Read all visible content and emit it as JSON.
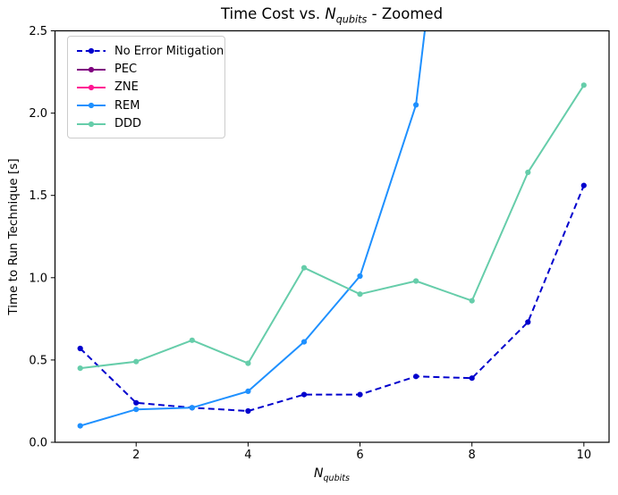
{
  "figure": {
    "title": {
      "prefix": "Time Cost vs. ",
      "math_base": "N",
      "math_sub": "qubits",
      "suffix": " - Zoomed"
    },
    "xlabel": {
      "math_base": "N",
      "math_sub": "qubits"
    },
    "ylabel": "Time to Run Technique [s]"
  },
  "chart_data": {
    "type": "line",
    "title": "Time Cost vs. N_qubits - Zoomed",
    "xlabel": "N_qubits",
    "ylabel": "Time to Run Technique [s]",
    "xlim": [
      0.55,
      10.45
    ],
    "ylim": [
      0,
      2.5
    ],
    "xticks": [
      2,
      4,
      6,
      8,
      10
    ],
    "yticks": [
      0.0,
      0.5,
      1.0,
      1.5,
      2.0,
      2.5
    ],
    "grid": false,
    "legend_position": "upper left",
    "x": [
      1,
      2,
      3,
      4,
      5,
      6,
      7,
      8,
      9,
      10
    ],
    "series": [
      {
        "name": "No Error Mitigation",
        "color": "#0000cd",
        "linestyle": "dashed",
        "marker": "circle",
        "values": [
          0.57,
          0.24,
          0.21,
          0.19,
          0.29,
          0.29,
          0.4,
          0.39,
          0.73,
          1.56
        ]
      },
      {
        "name": "PEC",
        "color": "#800080",
        "linestyle": "solid",
        "marker": "circle",
        "values": [
          null,
          null,
          null,
          null,
          null,
          null,
          null,
          null,
          null,
          null
        ],
        "note": "in legend only; no points visible within y-range"
      },
      {
        "name": "ZNE",
        "color": "#ff1493",
        "linestyle": "solid",
        "marker": "circle",
        "values": [
          null,
          null,
          null,
          null,
          null,
          null,
          null,
          null,
          null,
          null
        ],
        "note": "in legend only; no points visible within y-range"
      },
      {
        "name": "REM",
        "color": "#1e90ff",
        "linestyle": "solid",
        "marker": "circle",
        "values": [
          0.1,
          0.2,
          0.21,
          0.31,
          0.61,
          1.01,
          2.05,
          null,
          null,
          null
        ],
        "line_exits_top_at_x": 7.16
      },
      {
        "name": "DDD",
        "color": "#66cdaa",
        "linestyle": "solid",
        "marker": "circle",
        "values": [
          0.45,
          0.49,
          0.62,
          0.48,
          1.06,
          0.9,
          0.98,
          0.86,
          1.64,
          2.17
        ]
      }
    ]
  }
}
